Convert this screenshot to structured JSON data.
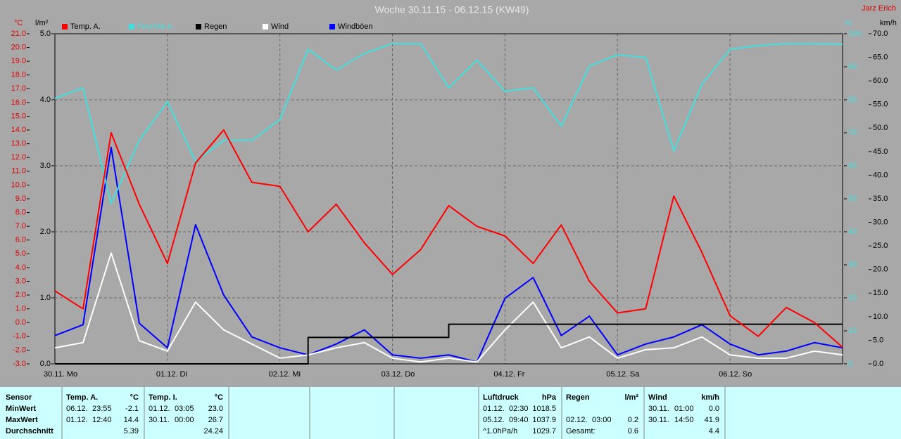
{
  "chart_data": {
    "type": "line",
    "title": "Woche 30.11.15 - 06.12.15 (KW49)",
    "author": "Jarz Erich",
    "y_label": "°C",
    "y2_label": "l/m²",
    "y3_label": "%",
    "y4_label": "km/h",
    "grid": true,
    "xlim": [
      0,
      168
    ],
    "xticks": [
      {
        "value": 0,
        "label": "30.11.  Mo"
      },
      {
        "value": 24,
        "label": "01.12.  Di"
      },
      {
        "value": 48,
        "label": "02.12.  Mi"
      },
      {
        "value": 72,
        "label": "03.12.  Do"
      },
      {
        "value": 96,
        "label": "04.12.  Fr"
      },
      {
        "value": 120,
        "label": "05.12.  Sa"
      },
      {
        "value": 144,
        "label": "06.12.  So"
      }
    ],
    "x": [
      0,
      6,
      12,
      18,
      24,
      30,
      36,
      42,
      48,
      54,
      60,
      66,
      72,
      78,
      84,
      90,
      96,
      102,
      108,
      114,
      120,
      126,
      132,
      138,
      144,
      150,
      156,
      162,
      168
    ],
    "ylim": [
      -3,
      21
    ],
    "yticks": [
      {
        "value": -3,
        "label": "-3.0"
      },
      {
        "value": -2,
        "label": "-2.0"
      },
      {
        "value": -1,
        "label": "-1.0"
      },
      {
        "value": 0,
        "label": "0.0"
      },
      {
        "value": 1,
        "label": "1.0"
      },
      {
        "value": 2,
        "label": "2.0"
      },
      {
        "value": 3,
        "label": "3.0"
      },
      {
        "value": 4,
        "label": "4.0"
      },
      {
        "value": 5,
        "label": "5.0"
      },
      {
        "value": 6,
        "label": "6.0"
      },
      {
        "value": 7,
        "label": "7.0"
      },
      {
        "value": 8,
        "label": "8.0"
      },
      {
        "value": 9,
        "label": "9.0"
      },
      {
        "value": 10,
        "label": "10.0"
      },
      {
        "value": 11,
        "label": "11.0"
      },
      {
        "value": 12,
        "label": "12.0"
      },
      {
        "value": 13,
        "label": "13.0"
      },
      {
        "value": 14,
        "label": "14.0"
      },
      {
        "value": 15,
        "label": "15.0"
      },
      {
        "value": 16,
        "label": "16.0"
      },
      {
        "value": 17,
        "label": "17.0"
      },
      {
        "value": 18,
        "label": "18.0"
      },
      {
        "value": 19,
        "label": "19.0"
      },
      {
        "value": 20,
        "label": "20.0"
      },
      {
        "value": 21,
        "label": "21.0"
      }
    ],
    "y2lim": [
      0,
      5
    ],
    "y2ticks": [
      {
        "value": 0,
        "label": "0.0"
      },
      {
        "value": 1,
        "label": "1.0"
      },
      {
        "value": 2,
        "label": "2.0"
      },
      {
        "value": 3,
        "label": "3.0"
      },
      {
        "value": 4,
        "label": "4.0"
      },
      {
        "value": 5,
        "label": "5.0"
      }
    ],
    "y3lim": [
      0,
      100
    ],
    "y3ticks": [
      0,
      10,
      20,
      30,
      40,
      50,
      60,
      70,
      80,
      90,
      100
    ],
    "y4lim": [
      0,
      70
    ],
    "y4ticks": [
      {
        "value": 0,
        "label": "0.0"
      },
      {
        "value": 5,
        "label": "5.0"
      },
      {
        "value": 10,
        "label": "10.0"
      },
      {
        "value": 15,
        "label": "15.0"
      },
      {
        "value": 20,
        "label": "20.0"
      },
      {
        "value": 25,
        "label": "25.0"
      },
      {
        "value": 30,
        "label": "30.0"
      },
      {
        "value": 35,
        "label": "35.0"
      },
      {
        "value": 40,
        "label": "40.0"
      },
      {
        "value": 45,
        "label": "45.0"
      },
      {
        "value": 50,
        "label": "50.0"
      },
      {
        "value": 55,
        "label": "55.0"
      },
      {
        "value": 60,
        "label": "60.0"
      },
      {
        "value": 65,
        "label": "65.0"
      },
      {
        "value": 70,
        "label": "70.0"
      }
    ],
    "series": [
      {
        "name": "Temp. A.",
        "color": "#ff0000",
        "axis": "y",
        "values": [
          2.3,
          1.0,
          13.8,
          8.6,
          4.3,
          11.6,
          14.0,
          10.2,
          9.9,
          6.6,
          8.6,
          5.8,
          3.5,
          5.3,
          8.5,
          7.0,
          6.3,
          4.3,
          7.1,
          3.0,
          0.7,
          1.0,
          9.2,
          5.1,
          0.5,
          -1.0,
          1.1,
          0.0,
          -1.8
        ]
      },
      {
        "name": "Feuchte A.",
        "color": "#40e0e0",
        "axis": "y3",
        "values": [
          80.4,
          83.6,
          48.5,
          67.7,
          79.4,
          61.3,
          67.7,
          67.7,
          74,
          95.3,
          89,
          94,
          97,
          97,
          83.6,
          92,
          82.6,
          83.6,
          72,
          90.2,
          93.6,
          92.8,
          64.5,
          84.7,
          95.3,
          96.4,
          97,
          97,
          96.8
        ]
      },
      {
        "name": "Regen",
        "color": "#000000",
        "axis": "y2",
        "step": true,
        "values": [
          0,
          0,
          0,
          0,
          0,
          0,
          0,
          0,
          0,
          0.4,
          0.4,
          0.4,
          0.4,
          0.4,
          0.6,
          0.6,
          0.6,
          0.6,
          0.6,
          0.6,
          0.6,
          0.6,
          0.6,
          0.6,
          0.6,
          0.6,
          0.6,
          0.6,
          0.6
        ]
      },
      {
        "name": "Wind",
        "color": "#ffffff",
        "axis": "y4",
        "values": [
          3.4,
          4.5,
          23.5,
          4.9,
          2.7,
          13.1,
          7.2,
          4.2,
          1.2,
          1.9,
          3.4,
          4.5,
          1.2,
          0.4,
          1.2,
          0.4,
          7.2,
          13.1,
          3.4,
          5.7,
          1.2,
          3,
          3.4,
          5.7,
          1.9,
          1.2,
          1.2,
          2.7,
          1.9
        ]
      },
      {
        "name": "Windböen",
        "color": "#0000ff",
        "axis": "y4",
        "values": [
          6,
          8.3,
          45.9,
          8.6,
          3.4,
          29.5,
          14.6,
          5.7,
          3.4,
          1.9,
          4.2,
          7.2,
          1.9,
          1.2,
          1.9,
          0.4,
          13.9,
          18.3,
          6,
          10.1,
          1.9,
          4.2,
          5.7,
          8.3,
          4.2,
          1.9,
          2.7,
          4.5,
          3.4
        ]
      }
    ]
  },
  "stats": {
    "sensor": [
      "Sensor",
      "MinWert",
      "MaxWert",
      "Durchschnitt"
    ],
    "blocks": [
      {
        "title": "Temp. A.",
        "unit": "°C",
        "rows": [
          [
            "06.12.",
            "23:55",
            "-2.1"
          ],
          [
            "01.12.",
            "12:40",
            "14.4"
          ],
          [
            "5.39"
          ]
        ]
      },
      {
        "title": "Temp. I.",
        "unit": "°C",
        "rows": [
          [
            "01.12.",
            "03:05",
            "23.0"
          ],
          [
            "30.11.",
            "00:00",
            "26.7"
          ],
          [
            "24.24"
          ]
        ]
      },
      {
        "title": "Luftdruck",
        "unit": "hPa",
        "rows": [
          [
            "01.12.",
            "02:30",
            "1018.5"
          ],
          [
            "05.12.",
            "09:40",
            "1037.9"
          ],
          [
            "^1.0hPa/h",
            "1029.7"
          ]
        ]
      },
      {
        "title": "Regen",
        "unit": "l/m²",
        "rows": [
          null,
          [
            "02.12.",
            "03:00",
            "0.2"
          ],
          [
            "Gesamt:",
            "0.6"
          ]
        ]
      },
      {
        "title": "Wind",
        "unit": "km/h",
        "rows": [
          [
            "30.11.",
            "01:00",
            "0.0"
          ],
          [
            "30.11.",
            "14:50",
            "41.9"
          ],
          [
            "4.4"
          ]
        ]
      }
    ]
  }
}
